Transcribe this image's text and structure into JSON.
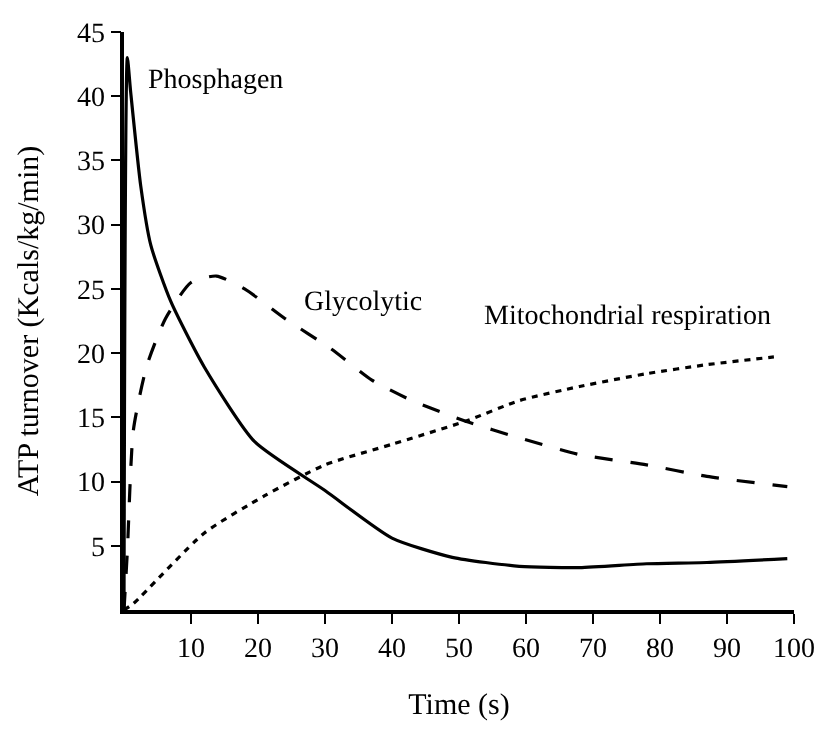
{
  "chart_data": {
    "type": "line",
    "xlabel": "Time (s)",
    "ylabel": "ATP turnover (Kcals/kg/min)",
    "xlim": [
      0,
      100
    ],
    "ylim": [
      0,
      45
    ],
    "xticks": [
      10,
      20,
      30,
      40,
      50,
      60,
      70,
      80,
      90,
      100
    ],
    "yticks": [
      5,
      10,
      15,
      20,
      25,
      30,
      35,
      40,
      45
    ],
    "legend": false,
    "marker": "none",
    "series": [
      {
        "name": "Phosphagen",
        "color": "#000000",
        "line_style": "solid",
        "x": [
          0,
          0.5,
          1,
          2.5,
          4,
          7,
          12,
          19.5,
          30,
          40,
          49,
          59,
          68,
          78,
          87,
          99
        ],
        "values": [
          0,
          43,
          40.3,
          33,
          28.4,
          24,
          18.9,
          13.1,
          9.3,
          5.6,
          4.1,
          3.4,
          3.3,
          3.6,
          3.7,
          4
        ]
      },
      {
        "name": "Glycolytic",
        "color": "#000000",
        "line_style": "dashed",
        "x": [
          0,
          0.5,
          1.4,
          3.4,
          6.2,
          10,
          13.8,
          18,
          24,
          31,
          37,
          43,
          51,
          59,
          68,
          78,
          87,
          99
        ],
        "values": [
          0,
          4.6,
          14,
          19,
          22.7,
          25.5,
          26,
          25,
          22.7,
          20.3,
          17.9,
          16.3,
          14.7,
          13.4,
          12.1,
          11.3,
          10.4,
          9.6
        ]
      },
      {
        "name": "Mitochondrial respiration",
        "color": "#000000",
        "line_style": "dotted",
        "x": [
          0,
          1.4,
          12,
          21,
          30,
          40,
          51,
          59,
          68,
          78,
          87,
          97
        ],
        "values": [
          0,
          0.5,
          6,
          8.9,
          11.3,
          12.9,
          14.7,
          16.3,
          17.4,
          18.4,
          19.1,
          19.7
        ]
      }
    ]
  }
}
